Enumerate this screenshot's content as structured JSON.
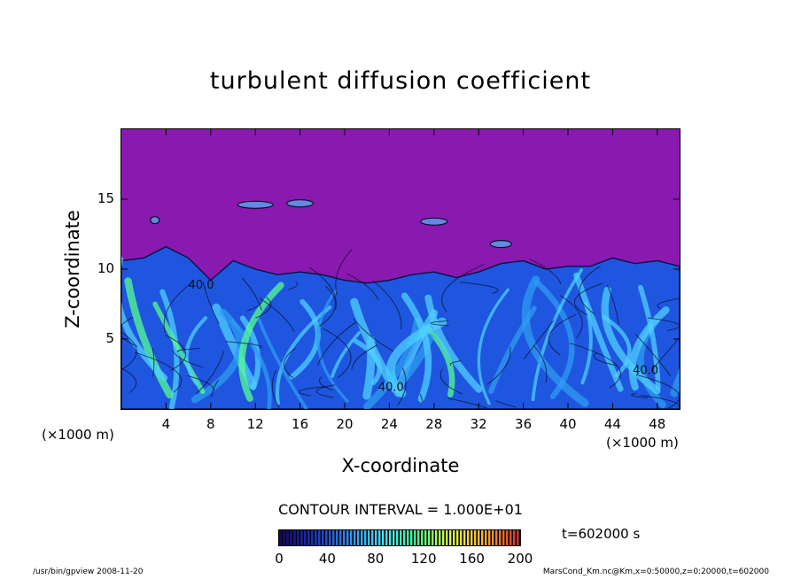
{
  "chart_data": {
    "type": "heatmap",
    "title": "turbulent diffusion coefficient",
    "xlabel": "X-coordinate",
    "ylabel": "Z-coordinate",
    "x_unit": "(×1000 m)",
    "y_unit": "(×1000 m)",
    "xlim": [
      0,
      50
    ],
    "ylim": [
      0,
      20
    ],
    "x_ticks": [
      4,
      8,
      12,
      16,
      20,
      24,
      28,
      32,
      36,
      40,
      44,
      48
    ],
    "y_ticks": [
      5,
      10,
      15
    ],
    "contour_labels": [
      "40.0",
      "40.0",
      "40.0"
    ],
    "boundary_layer_top_km": [
      [
        0,
        10.6
      ],
      [
        2,
        10.8
      ],
      [
        4,
        11.6
      ],
      [
        6,
        10.8
      ],
      [
        8,
        9.2
      ],
      [
        10,
        10.6
      ],
      [
        12,
        10.0
      ],
      [
        14,
        9.6
      ],
      [
        16,
        9.8
      ],
      [
        18,
        9.6
      ],
      [
        20,
        9.2
      ],
      [
        22,
        9.0
      ],
      [
        24,
        9.2
      ],
      [
        26,
        9.6
      ],
      [
        28,
        9.8
      ],
      [
        30,
        9.4
      ],
      [
        32,
        9.8
      ],
      [
        34,
        10.4
      ],
      [
        36,
        10.6
      ],
      [
        38,
        10.0
      ],
      [
        40,
        10.2
      ],
      [
        42,
        10.2
      ],
      [
        44,
        10.8
      ],
      [
        46,
        10.4
      ],
      [
        48,
        10.6
      ],
      [
        50,
        10.2
      ]
    ],
    "free_atmosphere_value": 0
  },
  "contour_interval": "CONTOUR INTERVAL = 1.000E+01",
  "time_label": "t=602000 s",
  "colorbar": {
    "ticks": [
      "0",
      "40",
      "80",
      "120",
      "160",
      "200"
    ],
    "range": [
      0,
      200
    ],
    "colors": [
      "#14006e",
      "#1830c8",
      "#2a8cff",
      "#40e0ff",
      "#40ff90",
      "#d8ff40",
      "#ffb030",
      "#e03020"
    ]
  },
  "colors": {
    "free_atmosphere": "#8a19b0",
    "boundary_layer": "#1f56e0",
    "plumes": "#4fd0ff",
    "hot_spots": "#55ff90"
  },
  "footer": {
    "left": "/usr/bin/gpview   2008-11-20",
    "right": "MarsCond_Km.nc@Km,x=0:50000,z=0:20000,t=602000"
  }
}
